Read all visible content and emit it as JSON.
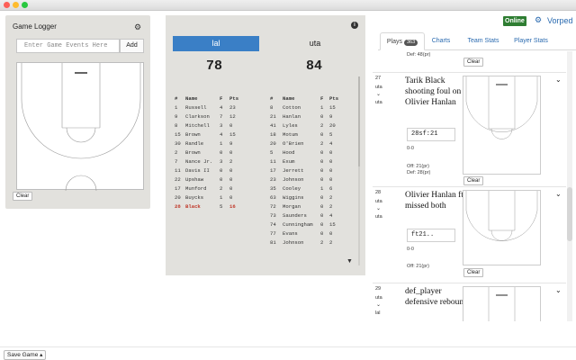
{
  "logger": {
    "title": "Game Logger",
    "icon": "gear-icon",
    "input_placeholder": "Enter Game Events Here",
    "input_value": "",
    "add_label": "Add",
    "clear_label": "Clear"
  },
  "scoreboard": {
    "info_icon": "info-icon",
    "filter_icon": "filter-icon",
    "home": {
      "name": "lal",
      "score": "78",
      "header": [
        "#",
        "Name",
        "F",
        "Pts"
      ],
      "players": [
        {
          "num": "1",
          "name": "Russell",
          "f": "4",
          "pts": "23"
        },
        {
          "num": "9",
          "name": "Clarkson",
          "f": "7",
          "pts": "12"
        },
        {
          "num": "8",
          "name": "Mitchell",
          "f": "3",
          "pts": "0"
        },
        {
          "num": "15",
          "name": "Brown",
          "f": "4",
          "pts": "15"
        },
        {
          "num": "30",
          "name": "Randle",
          "f": "1",
          "pts": "9"
        },
        {
          "num": "2",
          "name": "Brown",
          "f": "0",
          "pts": "0"
        },
        {
          "num": "7",
          "name": "Nance Jr.",
          "f": "3",
          "pts": "2"
        },
        {
          "num": "11",
          "name": "Davis II",
          "f": "0",
          "pts": "0"
        },
        {
          "num": "22",
          "name": "Upshaw",
          "f": "0",
          "pts": "0"
        },
        {
          "num": "17",
          "name": "Munford",
          "f": "2",
          "pts": "0"
        },
        {
          "num": "20",
          "name": "Buycks",
          "f": "1",
          "pts": "0"
        },
        {
          "num": "28",
          "name": "Black",
          "f": "5",
          "pts": "16"
        }
      ]
    },
    "away": {
      "name": "uta",
      "score": "84",
      "header": [
        "#",
        "Name",
        "F",
        "Pts"
      ],
      "players": [
        {
          "num": "8",
          "name": "Cotton",
          "f": "1",
          "pts": "15"
        },
        {
          "num": "21",
          "name": "Hanlan",
          "f": "0",
          "pts": "9"
        },
        {
          "num": "41",
          "name": "Lyles",
          "f": "2",
          "pts": "20"
        },
        {
          "num": "18",
          "name": "Motum",
          "f": "0",
          "pts": "5"
        },
        {
          "num": "20",
          "name": "O'Brien",
          "f": "2",
          "pts": "4"
        },
        {
          "num": "5",
          "name": "Hood",
          "f": "0",
          "pts": "0"
        },
        {
          "num": "11",
          "name": "Exum",
          "f": "0",
          "pts": "0"
        },
        {
          "num": "17",
          "name": "Jerrett",
          "f": "0",
          "pts": "0"
        },
        {
          "num": "23",
          "name": "Johnson",
          "f": "0",
          "pts": "0"
        },
        {
          "num": "35",
          "name": "Cooley",
          "f": "1",
          "pts": "6"
        },
        {
          "num": "63",
          "name": "Wiggins",
          "f": "0",
          "pts": "2"
        },
        {
          "num": "72",
          "name": "Morgan",
          "f": "0",
          "pts": "2"
        },
        {
          "num": "73",
          "name": "Saunders",
          "f": "0",
          "pts": "4"
        },
        {
          "num": "74",
          "name": "Cunningham",
          "f": "0",
          "pts": "15"
        },
        {
          "num": "77",
          "name": "Evans",
          "f": "0",
          "pts": "0"
        },
        {
          "num": "81",
          "name": "Johnson",
          "f": "2",
          "pts": "2"
        }
      ]
    }
  },
  "header_right": {
    "status": "Online",
    "settings_icon": "gear-icon",
    "brand": "Vorped"
  },
  "tabs": [
    {
      "label": "Plays",
      "badge": "363"
    },
    {
      "label": "Charts"
    },
    {
      "label": "Team Stats"
    },
    {
      "label": "Player Stats"
    }
  ],
  "feed": {
    "top_partial": {
      "def_line": "Def: 48(pr)",
      "clear_label": "Clear"
    },
    "plays": [
      {
        "num": "27",
        "team1": "uta",
        "team2": "uta",
        "desc": "Tarik Black shooting foul on Olivier Hanlan",
        "time": "28sf:21",
        "score": "0-0",
        "off": "Off: 21(pr)",
        "def": "Def: 28(pr)",
        "clear_label": "Clear"
      },
      {
        "num": "28",
        "team1": "uta",
        "team2": "uta",
        "desc": "Olivier Hanlan ft missed both",
        "time": "ft21..",
        "score": "0-0",
        "off": "Off: 21(pr)",
        "clear_label": "Clear"
      },
      {
        "num": "29",
        "team1": "uta",
        "team2": "lal",
        "desc": "def_player defensive rebound"
      }
    ]
  },
  "footer": {
    "save_label": "Save Game"
  }
}
